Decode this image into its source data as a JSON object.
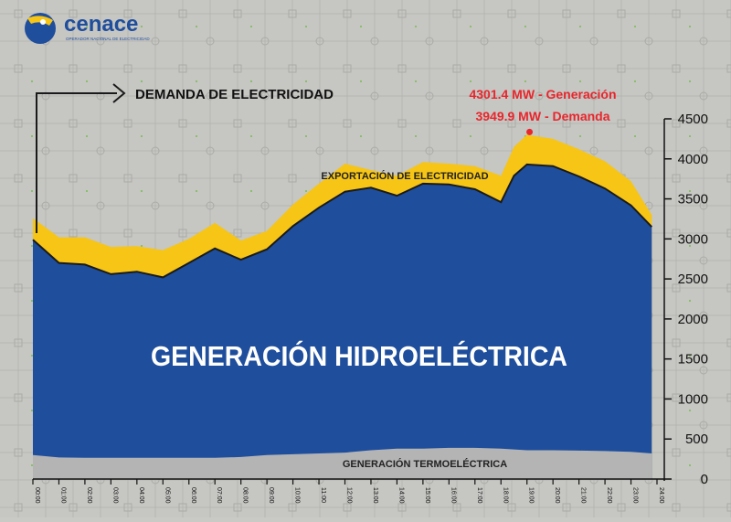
{
  "brand": {
    "name": "cenace",
    "tagline": "OPERADOR NACIONAL DE ELECTRICIDAD",
    "colors": {
      "blue": "#1f4e9c",
      "yellow": "#f6c515"
    }
  },
  "chart_data": {
    "type": "area",
    "annotations": {
      "demand_label": "DEMANDA DE ELECTRICIDAD",
      "peak_generation": "4301.4 MW - Generación",
      "peak_demand": "3949.9 MW - Demanda",
      "export_label": "EXPORTACIÓN DE ELECTRICIDAD",
      "hydro_label": "GENERACIÓN HIDROELÉCTRICA",
      "thermo_label": "GENERACIÓN TERMOELÉCTRICA"
    },
    "peak": {
      "x": 19.1,
      "y": 4301.4
    },
    "ylim": [
      0,
      4500
    ],
    "xlim": [
      0,
      24
    ],
    "yticks": [
      "4500",
      "4000",
      "3500",
      "3000",
      "2500",
      "2000",
      "1500",
      "1000",
      "500",
      "0"
    ],
    "yticks_values": [
      4500,
      4000,
      3500,
      3000,
      2500,
      2000,
      1500,
      1000,
      500,
      0
    ],
    "xticks": [
      "00:00",
      "01:00",
      "02:00",
      "03:00",
      "04:00",
      "05:00",
      "06:00",
      "07:00",
      "08:00",
      "09:00",
      "10:00",
      "11:00",
      "12:00",
      "13:00",
      "14:00",
      "15:00",
      "16:00",
      "17:00",
      "18:00",
      "19:00",
      "20:00",
      "21:00",
      "22:00",
      "23:00",
      "24:00"
    ],
    "x": [
      0,
      1,
      2,
      3,
      4,
      5,
      6,
      7,
      8,
      9,
      10,
      11,
      12,
      13,
      14,
      15,
      16,
      17,
      18,
      18.5,
      19,
      20,
      21,
      22,
      23,
      23.8
    ],
    "series": [
      {
        "key": "thermo",
        "color": "#b4b4b4",
        "values": [
          300,
          270,
          265,
          265,
          265,
          265,
          265,
          265,
          275,
          300,
          310,
          320,
          330,
          360,
          380,
          380,
          390,
          390,
          380,
          370,
          360,
          360,
          355,
          350,
          340,
          320
        ]
      },
      {
        "key": "hydro",
        "color": "#1f4e9c",
        "values": [
          2990,
          2700,
          2680,
          2560,
          2590,
          2520,
          2700,
          2880,
          2740,
          2870,
          3160,
          3390,
          3590,
          3640,
          3540,
          3690,
          3680,
          3620,
          3460,
          3790,
          3930,
          3910,
          3780,
          3630,
          3420,
          3150
        ]
      },
      {
        "key": "export",
        "color": "#f6c515",
        "values": [
          3260,
          3020,
          3020,
          2900,
          2910,
          2860,
          3000,
          3200,
          2980,
          3100,
          3430,
          3690,
          3940,
          3860,
          3790,
          3960,
          3940,
          3910,
          3790,
          4150,
          4300,
          4250,
          4120,
          3970,
          3720,
          3300
        ]
      }
    ]
  }
}
